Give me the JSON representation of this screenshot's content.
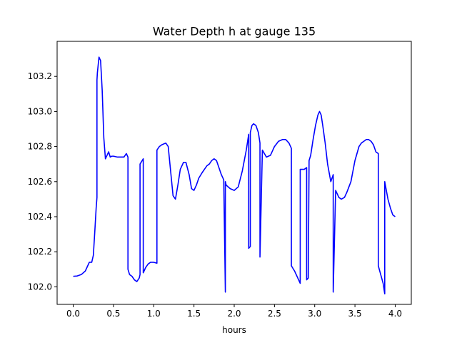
{
  "chart_data": {
    "type": "line",
    "title": "Water Depth h at gauge 135",
    "xlabel": "hours",
    "ylabel": "",
    "xlim": [
      -0.2,
      4.2
    ],
    "ylim": [
      101.9,
      103.4
    ],
    "xticks": [
      0.0,
      0.5,
      1.0,
      1.5,
      2.0,
      2.5,
      3.0,
      3.5,
      4.0
    ],
    "xtick_labels": [
      "0.0",
      "0.5",
      "1.0",
      "1.5",
      "2.0",
      "2.5",
      "3.0",
      "3.5",
      "4.0"
    ],
    "yticks": [
      102.0,
      102.2,
      102.4,
      102.6,
      102.8,
      103.0,
      103.2
    ],
    "ytick_labels": [
      "102.0",
      "102.2",
      "102.4",
      "102.6",
      "102.8",
      "103.0",
      "103.2"
    ],
    "grid": false,
    "legend": "none",
    "series": [
      {
        "color": "#0000ff",
        "x": [
          0.0,
          0.05,
          0.1,
          0.15,
          0.18,
          0.2,
          0.23,
          0.25,
          0.27,
          0.285,
          0.295,
          0.295,
          0.3,
          0.32,
          0.34,
          0.36,
          0.38,
          0.4,
          0.42,
          0.44,
          0.46,
          0.48,
          0.5,
          0.55,
          0.6,
          0.63,
          0.66,
          0.68,
          0.68,
          0.7,
          0.73,
          0.76,
          0.79,
          0.82,
          0.83,
          0.83,
          0.87,
          0.87,
          0.88,
          0.9,
          0.93,
          0.96,
          1.0,
          1.04,
          1.04,
          1.07,
          1.1,
          1.15,
          1.18,
          1.21,
          1.24,
          1.27,
          1.3,
          1.33,
          1.37,
          1.4,
          1.44,
          1.47,
          1.5,
          1.53,
          1.56,
          1.6,
          1.63,
          1.66,
          1.69,
          1.72,
          1.75,
          1.78,
          1.81,
          1.84,
          1.87,
          1.89,
          1.89,
          1.9,
          1.95,
          2.0,
          2.05,
          2.1,
          2.15,
          2.18,
          2.18,
          2.2,
          2.2,
          2.22,
          2.24,
          2.27,
          2.3,
          2.32,
          2.32,
          2.35,
          2.4,
          2.45,
          2.5,
          2.55,
          2.6,
          2.64,
          2.68,
          2.71,
          2.71,
          2.75,
          2.8,
          2.82,
          2.82,
          2.84,
          2.87,
          2.9,
          2.9,
          2.92,
          2.93,
          2.95,
          2.98,
          3.01,
          3.04,
          3.06,
          3.08,
          3.1,
          3.13,
          3.16,
          3.2,
          3.23,
          3.23,
          3.26,
          3.3,
          3.33,
          3.37,
          3.4,
          3.45,
          3.5,
          3.55,
          3.58,
          3.61,
          3.64,
          3.67,
          3.7,
          3.73,
          3.76,
          3.79,
          3.79,
          3.82,
          3.85,
          3.87,
          3.87,
          3.89,
          3.91,
          3.94,
          3.97,
          4.0
        ],
        "y": [
          102.06,
          102.062,
          102.07,
          102.09,
          102.12,
          102.14,
          102.14,
          102.18,
          102.33,
          102.45,
          102.51,
          103.18,
          103.22,
          103.31,
          103.29,
          103.12,
          102.85,
          102.73,
          102.75,
          102.77,
          102.74,
          102.745,
          102.745,
          102.74,
          102.74,
          102.74,
          102.76,
          102.74,
          102.1,
          102.07,
          102.06,
          102.04,
          102.03,
          102.05,
          102.07,
          102.7,
          102.73,
          102.08,
          102.09,
          102.11,
          102.13,
          102.14,
          102.14,
          102.135,
          102.78,
          102.8,
          102.81,
          102.82,
          102.8,
          102.66,
          102.52,
          102.5,
          102.58,
          102.67,
          102.71,
          102.71,
          102.64,
          102.56,
          102.55,
          102.58,
          102.62,
          102.65,
          102.67,
          102.69,
          102.7,
          102.72,
          102.73,
          102.72,
          102.68,
          102.64,
          102.61,
          101.97,
          102.6,
          102.58,
          102.56,
          102.55,
          102.57,
          102.66,
          102.78,
          102.87,
          102.22,
          102.23,
          102.88,
          102.92,
          102.93,
          102.92,
          102.88,
          102.82,
          102.17,
          102.78,
          102.74,
          102.75,
          102.8,
          102.83,
          102.84,
          102.84,
          102.82,
          102.79,
          102.12,
          102.09,
          102.04,
          102.02,
          102.67,
          102.67,
          102.67,
          102.68,
          102.04,
          102.05,
          102.72,
          102.75,
          102.84,
          102.92,
          102.98,
          103.0,
          102.98,
          102.92,
          102.82,
          102.7,
          102.6,
          102.64,
          101.97,
          102.55,
          102.51,
          102.5,
          102.51,
          102.54,
          102.6,
          102.72,
          102.8,
          102.82,
          102.83,
          102.84,
          102.84,
          102.83,
          102.81,
          102.77,
          102.76,
          102.12,
          102.07,
          102.02,
          101.96,
          102.6,
          102.55,
          102.5,
          102.45,
          102.41,
          102.4
        ]
      }
    ]
  }
}
